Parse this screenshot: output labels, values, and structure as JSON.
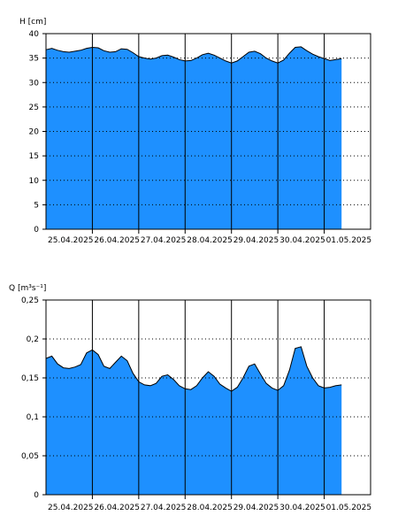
{
  "chart_data": [
    {
      "type": "area",
      "ylabel": "H [cm]",
      "ylim": [
        0,
        40
      ],
      "yticks": [
        0,
        5,
        10,
        15,
        20,
        25,
        30,
        35,
        40
      ],
      "ytick_labels": [
        "0",
        "5",
        "10",
        "15",
        "20",
        "25",
        "30",
        "35",
        "40"
      ],
      "xlim": [
        "2025-04-25T00:00",
        "2025-05-02T00:00"
      ],
      "xtick_labels": [
        "25.04.2025",
        "26.04.2025",
        "27.04.2025",
        "28.04.2025",
        "29.04.2025",
        "30.04.2025",
        "01.05.2025"
      ],
      "grid": "dotted",
      "fill_color": "#1e90ff",
      "series": [
        {
          "x": [
            "2025-04-25T00:00",
            "2025-04-25T03:00",
            "2025-04-25T06:00",
            "2025-04-25T09:00",
            "2025-04-25T12:00",
            "2025-04-25T15:00",
            "2025-04-25T18:00",
            "2025-04-25T21:00",
            "2025-04-26T00:00",
            "2025-04-26T03:00",
            "2025-04-26T06:00",
            "2025-04-26T09:00",
            "2025-04-26T12:00",
            "2025-04-26T15:00",
            "2025-04-26T18:00",
            "2025-04-26T21:00",
            "2025-04-27T00:00",
            "2025-04-27T03:00",
            "2025-04-27T06:00",
            "2025-04-27T09:00",
            "2025-04-27T12:00",
            "2025-04-27T15:00",
            "2025-04-27T18:00",
            "2025-04-27T21:00",
            "2025-04-28T00:00",
            "2025-04-28T03:00",
            "2025-04-28T06:00",
            "2025-04-28T09:00",
            "2025-04-28T12:00",
            "2025-04-28T15:00",
            "2025-04-28T18:00",
            "2025-04-28T21:00",
            "2025-04-29T00:00",
            "2025-04-29T03:00",
            "2025-04-29T06:00",
            "2025-04-29T09:00",
            "2025-04-29T12:00",
            "2025-04-29T15:00",
            "2025-04-29T18:00",
            "2025-04-29T21:00",
            "2025-04-30T00:00",
            "2025-04-30T03:00",
            "2025-04-30T06:00",
            "2025-04-30T09:00",
            "2025-04-30T12:00",
            "2025-04-30T15:00",
            "2025-04-30T18:00",
            "2025-04-30T21:00",
            "2025-05-01T00:00",
            "2025-05-01T03:00",
            "2025-05-01T06:00",
            "2025-05-01T09:00"
          ],
          "values": [
            36.7,
            37.0,
            36.6,
            36.3,
            36.2,
            36.4,
            36.6,
            37.0,
            37.2,
            37.1,
            36.5,
            36.2,
            36.3,
            36.9,
            36.8,
            36.1,
            35.3,
            35.0,
            34.8,
            35.0,
            35.5,
            35.6,
            35.2,
            34.7,
            34.4,
            34.5,
            35.0,
            35.7,
            36.0,
            35.6,
            35.0,
            34.4,
            34.0,
            34.4,
            35.3,
            36.2,
            36.4,
            35.9,
            35.0,
            34.4,
            34.0,
            34.6,
            36.0,
            37.2,
            37.3,
            36.5,
            35.8,
            35.3,
            34.9,
            34.5,
            34.7,
            34.9
          ]
        }
      ]
    },
    {
      "type": "area",
      "ylabel": "Q [m³s⁻¹]",
      "ylim": [
        0,
        0.25
      ],
      "yticks": [
        0,
        0.05,
        0.1,
        0.15,
        0.2,
        0.25
      ],
      "ytick_labels": [
        "0",
        "0,05",
        "0,1",
        "0,15",
        "0,2",
        "0,25"
      ],
      "xlim": [
        "2025-04-25T00:00",
        "2025-05-02T00:00"
      ],
      "xtick_labels": [
        "25.04.2025",
        "26.04.2025",
        "27.04.2025",
        "28.04.2025",
        "29.04.2025",
        "30.04.2025",
        "01.05.2025"
      ],
      "grid": "dotted",
      "fill_color": "#1e90ff",
      "series": [
        {
          "x": [
            "2025-04-25T00:00",
            "2025-04-25T03:00",
            "2025-04-25T06:00",
            "2025-04-25T09:00",
            "2025-04-25T12:00",
            "2025-04-25T15:00",
            "2025-04-25T18:00",
            "2025-04-25T21:00",
            "2025-04-26T00:00",
            "2025-04-26T03:00",
            "2025-04-26T06:00",
            "2025-04-26T09:00",
            "2025-04-26T12:00",
            "2025-04-26T15:00",
            "2025-04-26T18:00",
            "2025-04-26T21:00",
            "2025-04-27T00:00",
            "2025-04-27T03:00",
            "2025-04-27T06:00",
            "2025-04-27T09:00",
            "2025-04-27T12:00",
            "2025-04-27T15:00",
            "2025-04-27T18:00",
            "2025-04-27T21:00",
            "2025-04-28T00:00",
            "2025-04-28T03:00",
            "2025-04-28T06:00",
            "2025-04-28T09:00",
            "2025-04-28T12:00",
            "2025-04-28T15:00",
            "2025-04-28T18:00",
            "2025-04-28T21:00",
            "2025-04-29T00:00",
            "2025-04-29T03:00",
            "2025-04-29T06:00",
            "2025-04-29T09:00",
            "2025-04-29T12:00",
            "2025-04-29T15:00",
            "2025-04-29T18:00",
            "2025-04-29T21:00",
            "2025-04-30T00:00",
            "2025-04-30T03:00",
            "2025-04-30T06:00",
            "2025-04-30T09:00",
            "2025-04-30T12:00",
            "2025-04-30T15:00",
            "2025-04-30T18:00",
            "2025-04-30T21:00",
            "2025-05-01T00:00",
            "2025-05-01T03:00",
            "2025-05-01T06:00",
            "2025-05-01T09:00"
          ],
          "values": [
            0.175,
            0.178,
            0.168,
            0.163,
            0.162,
            0.164,
            0.167,
            0.182,
            0.186,
            0.18,
            0.165,
            0.162,
            0.17,
            0.178,
            0.172,
            0.156,
            0.145,
            0.141,
            0.14,
            0.143,
            0.152,
            0.154,
            0.148,
            0.14,
            0.136,
            0.135,
            0.14,
            0.15,
            0.158,
            0.152,
            0.142,
            0.137,
            0.133,
            0.138,
            0.15,
            0.165,
            0.168,
            0.155,
            0.143,
            0.137,
            0.134,
            0.14,
            0.16,
            0.188,
            0.19,
            0.165,
            0.15,
            0.14,
            0.137,
            0.138,
            0.14,
            0.141
          ]
        }
      ]
    }
  ]
}
